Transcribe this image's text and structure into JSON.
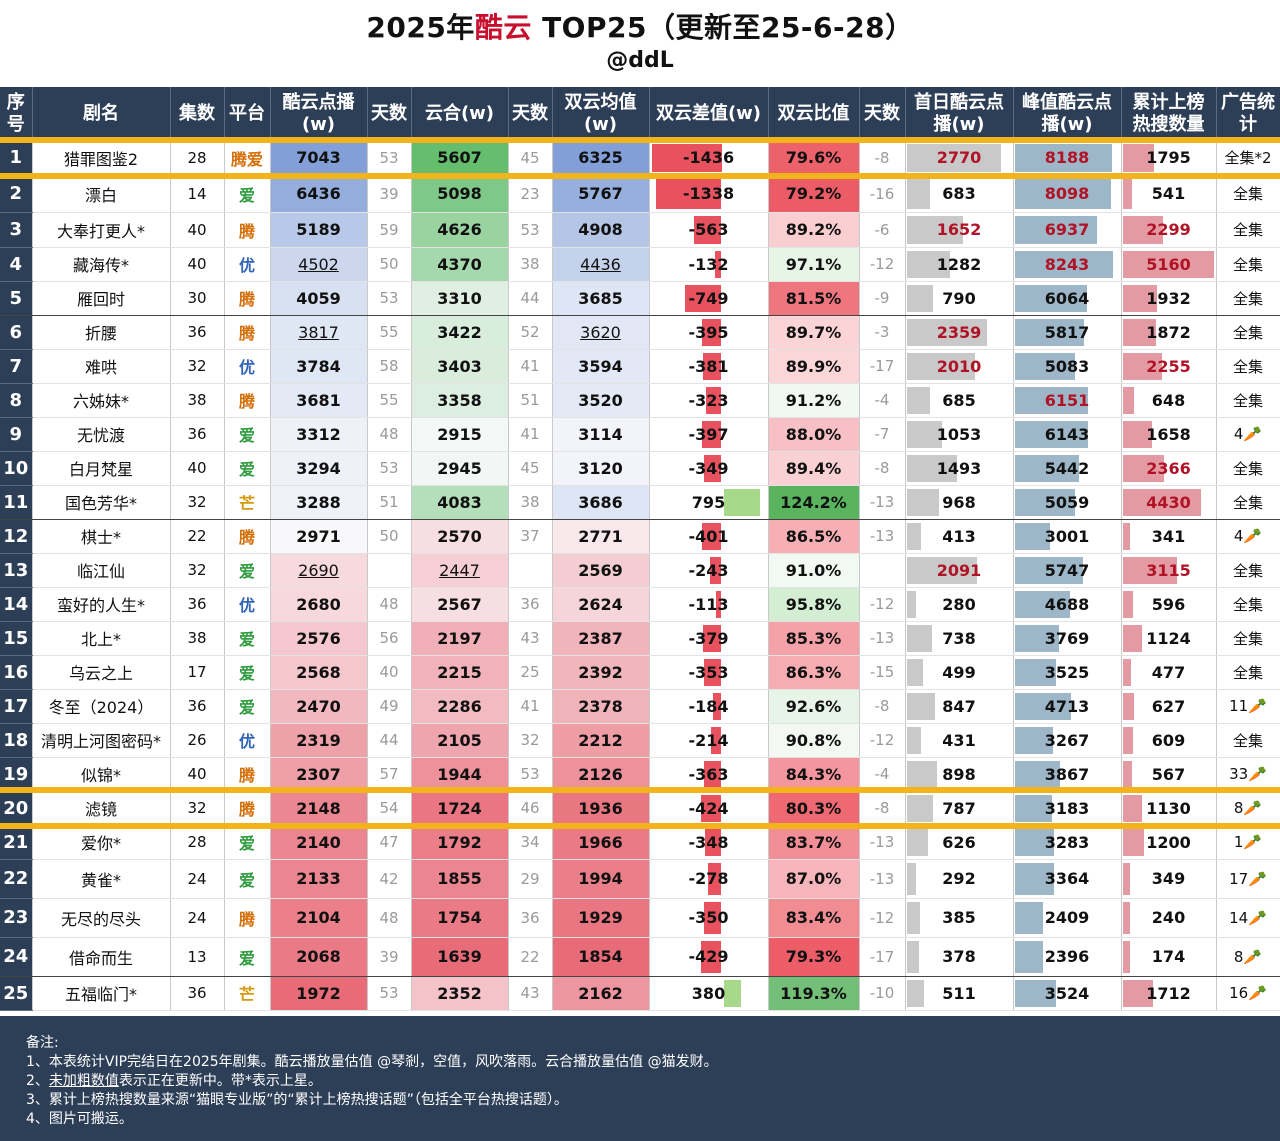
{
  "title_prefix": "2025年",
  "title_highlight": "酷云",
  "title_suffix": " TOP25（更新至25-6-28）",
  "subtitle": "@ddL",
  "headers": [
    "序号",
    "剧名",
    "集数",
    "平台",
    "酷云点播(w)",
    "天数",
    "云合(w)",
    "天数",
    "双云均值(w)",
    "双云差值(w)",
    "双云比值",
    "天数",
    "首日酷云点播(w)",
    "峰值酷云点播(w)",
    "累计上榜热搜数量",
    "广告统计"
  ],
  "colors": {
    "header": "#2d3f57",
    "highlight": "#f2b418",
    "title_red": "#c8102e",
    "carrot": "#e06c10"
  },
  "chart_data": {
    "type": "table",
    "columns": [
      "rank",
      "name",
      "episodes",
      "platform",
      "kuyun",
      "kuyun_days",
      "yunhe",
      "yunhe_days",
      "avg",
      "diff",
      "ratio",
      "ratio_days",
      "first_day",
      "peak",
      "hot_search",
      "ads"
    ],
    "rows": [
      {
        "rank": "1",
        "name": "猎罪图鉴2",
        "episodes": "28",
        "platform": "腾爱",
        "kuyun": "7043",
        "kuyun_days": "53",
        "yunhe": "5607",
        "yunhe_days": "45",
        "avg": "6325",
        "diff": "-1436",
        "ratio": "79.6%",
        "ratio_days": "-8",
        "first_day": "2770",
        "peak": "8188",
        "hot_search": "1795",
        "ads": "全集*2"
      },
      {
        "rank": "2",
        "name": "漂白",
        "episodes": "14",
        "platform": "爱",
        "kuyun": "6436",
        "kuyun_days": "39",
        "yunhe": "5098",
        "yunhe_days": "23",
        "avg": "5767",
        "diff": "-1338",
        "ratio": "79.2%",
        "ratio_days": "-16",
        "first_day": "683",
        "peak": "8098",
        "hot_search": "541",
        "ads": "全集"
      },
      {
        "rank": "3",
        "name": "大奉打更人*",
        "episodes": "40",
        "platform": "腾",
        "kuyun": "5189",
        "kuyun_days": "59",
        "yunhe": "4626",
        "yunhe_days": "53",
        "avg": "4908",
        "diff": "-563",
        "ratio": "89.2%",
        "ratio_days": "-6",
        "first_day": "1652",
        "peak": "6937",
        "hot_search": "2299",
        "ads": "全集"
      },
      {
        "rank": "4",
        "name": "藏海传*",
        "episodes": "40",
        "platform": "优",
        "kuyun": "4502",
        "kuyun_days": "50",
        "yunhe": "4370",
        "yunhe_days": "38",
        "avg": "4436",
        "diff": "-132",
        "ratio": "97.1%",
        "ratio_days": "-12",
        "first_day": "1282",
        "peak": "8243",
        "hot_search": "5160",
        "ads": "全集"
      },
      {
        "rank": "5",
        "name": "雁回时",
        "episodes": "30",
        "platform": "腾",
        "kuyun": "4059",
        "kuyun_days": "53",
        "yunhe": "3310",
        "yunhe_days": "44",
        "avg": "3685",
        "diff": "-749",
        "ratio": "81.5%",
        "ratio_days": "-9",
        "first_day": "790",
        "peak": "6064",
        "hot_search": "1932",
        "ads": "全集"
      },
      {
        "rank": "6",
        "name": "折腰",
        "episodes": "36",
        "platform": "腾",
        "kuyun": "3817",
        "kuyun_days": "55",
        "yunhe": "3422",
        "yunhe_days": "52",
        "avg": "3620",
        "diff": "-395",
        "ratio": "89.7%",
        "ratio_days": "-3",
        "first_day": "2359",
        "peak": "5817",
        "hot_search": "1872",
        "ads": "全集"
      },
      {
        "rank": "7",
        "name": "难哄",
        "episodes": "32",
        "platform": "优",
        "kuyun": "3784",
        "kuyun_days": "58",
        "yunhe": "3403",
        "yunhe_days": "41",
        "avg": "3594",
        "diff": "-381",
        "ratio": "89.9%",
        "ratio_days": "-17",
        "first_day": "2010",
        "peak": "5083",
        "hot_search": "2255",
        "ads": "全集"
      },
      {
        "rank": "8",
        "name": "六姊妹*",
        "episodes": "38",
        "platform": "腾",
        "kuyun": "3681",
        "kuyun_days": "55",
        "yunhe": "3358",
        "yunhe_days": "51",
        "avg": "3520",
        "diff": "-323",
        "ratio": "91.2%",
        "ratio_days": "-4",
        "first_day": "685",
        "peak": "6151",
        "hot_search": "648",
        "ads": "全集"
      },
      {
        "rank": "9",
        "name": "无忧渡",
        "episodes": "36",
        "platform": "爱",
        "kuyun": "3312",
        "kuyun_days": "48",
        "yunhe": "2915",
        "yunhe_days": "41",
        "avg": "3114",
        "diff": "-397",
        "ratio": "88.0%",
        "ratio_days": "-7",
        "first_day": "1053",
        "peak": "6143",
        "hot_search": "1658",
        "ads": "4"
      },
      {
        "rank": "10",
        "name": "白月梵星",
        "episodes": "40",
        "platform": "爱",
        "kuyun": "3294",
        "kuyun_days": "53",
        "yunhe": "2945",
        "yunhe_days": "45",
        "avg": "3120",
        "diff": "-349",
        "ratio": "89.4%",
        "ratio_days": "-8",
        "first_day": "1493",
        "peak": "5442",
        "hot_search": "2366",
        "ads": "全集"
      },
      {
        "rank": "11",
        "name": "国色芳华*",
        "episodes": "32",
        "platform": "芒",
        "kuyun": "3288",
        "kuyun_days": "51",
        "yunhe": "4083",
        "yunhe_days": "38",
        "avg": "3686",
        "diff": "795",
        "ratio": "124.2%",
        "ratio_days": "-13",
        "first_day": "968",
        "peak": "5059",
        "hot_search": "4430",
        "ads": "全集"
      },
      {
        "rank": "12",
        "name": "棋士*",
        "episodes": "22",
        "platform": "腾",
        "kuyun": "2971",
        "kuyun_days": "50",
        "yunhe": "2570",
        "yunhe_days": "37",
        "avg": "2771",
        "diff": "-401",
        "ratio": "86.5%",
        "ratio_days": "-13",
        "first_day": "413",
        "peak": "3001",
        "hot_search": "341",
        "ads": "4"
      },
      {
        "rank": "13",
        "name": "临江仙",
        "episodes": "32",
        "platform": "爱",
        "kuyun": "2690",
        "kuyun_days": "",
        "yunhe": "2447",
        "yunhe_days": "",
        "avg": "2569",
        "diff": "-243",
        "ratio": "91.0%",
        "ratio_days": "",
        "first_day": "2091",
        "peak": "5747",
        "hot_search": "3115",
        "ads": "全集"
      },
      {
        "rank": "14",
        "name": "蛮好的人生*",
        "episodes": "36",
        "platform": "优",
        "kuyun": "2680",
        "kuyun_days": "48",
        "yunhe": "2567",
        "yunhe_days": "36",
        "avg": "2624",
        "diff": "-113",
        "ratio": "95.8%",
        "ratio_days": "-12",
        "first_day": "280",
        "peak": "4688",
        "hot_search": "596",
        "ads": "全集"
      },
      {
        "rank": "15",
        "name": "北上*",
        "episodes": "38",
        "platform": "爱",
        "kuyun": "2576",
        "kuyun_days": "56",
        "yunhe": "2197",
        "yunhe_days": "43",
        "avg": "2387",
        "diff": "-379",
        "ratio": "85.3%",
        "ratio_days": "-13",
        "first_day": "738",
        "peak": "3769",
        "hot_search": "1124",
        "ads": "全集"
      },
      {
        "rank": "16",
        "name": "乌云之上",
        "episodes": "17",
        "platform": "爱",
        "kuyun": "2568",
        "kuyun_days": "40",
        "yunhe": "2215",
        "yunhe_days": "25",
        "avg": "2392",
        "diff": "-353",
        "ratio": "86.3%",
        "ratio_days": "-15",
        "first_day": "499",
        "peak": "3525",
        "hot_search": "477",
        "ads": "全集"
      },
      {
        "rank": "17",
        "name": "冬至（2024）",
        "episodes": "36",
        "platform": "爱",
        "kuyun": "2470",
        "kuyun_days": "49",
        "yunhe": "2286",
        "yunhe_days": "41",
        "avg": "2378",
        "diff": "-184",
        "ratio": "92.6%",
        "ratio_days": "-8",
        "first_day": "847",
        "peak": "4713",
        "hot_search": "627",
        "ads": "11"
      },
      {
        "rank": "18",
        "name": "清明上河图密码*",
        "episodes": "26",
        "platform": "优",
        "kuyun": "2319",
        "kuyun_days": "44",
        "yunhe": "2105",
        "yunhe_days": "32",
        "avg": "2212",
        "diff": "-214",
        "ratio": "90.8%",
        "ratio_days": "-12",
        "first_day": "431",
        "peak": "3267",
        "hot_search": "609",
        "ads": "全集"
      },
      {
        "rank": "19",
        "name": "似锦*",
        "episodes": "40",
        "platform": "腾",
        "kuyun": "2307",
        "kuyun_days": "57",
        "yunhe": "1944",
        "yunhe_days": "53",
        "avg": "2126",
        "diff": "-363",
        "ratio": "84.3%",
        "ratio_days": "-4",
        "first_day": "898",
        "peak": "3867",
        "hot_search": "567",
        "ads": "33"
      },
      {
        "rank": "20",
        "name": "滤镜",
        "episodes": "32",
        "platform": "腾",
        "kuyun": "2148",
        "kuyun_days": "54",
        "yunhe": "1724",
        "yunhe_days": "46",
        "avg": "1936",
        "diff": "-424",
        "ratio": "80.3%",
        "ratio_days": "-8",
        "first_day": "787",
        "peak": "3183",
        "hot_search": "1130",
        "ads": "8"
      },
      {
        "rank": "21",
        "name": "爱你*",
        "episodes": "28",
        "platform": "爱",
        "kuyun": "2140",
        "kuyun_days": "47",
        "yunhe": "1792",
        "yunhe_days": "34",
        "avg": "1966",
        "diff": "-348",
        "ratio": "83.7%",
        "ratio_days": "-13",
        "first_day": "626",
        "peak": "3283",
        "hot_search": "1200",
        "ads": "1"
      },
      {
        "rank": "22",
        "name": "黄雀*",
        "episodes": "24",
        "platform": "爱",
        "kuyun": "2133",
        "kuyun_days": "42",
        "yunhe": "1855",
        "yunhe_days": "29",
        "avg": "1994",
        "diff": "-278",
        "ratio": "87.0%",
        "ratio_days": "-13",
        "first_day": "292",
        "peak": "3364",
        "hot_search": "349",
        "ads": "17"
      },
      {
        "rank": "23",
        "name": "无尽的尽头",
        "episodes": "24",
        "platform": "腾",
        "kuyun": "2104",
        "kuyun_days": "48",
        "yunhe": "1754",
        "yunhe_days": "36",
        "avg": "1929",
        "diff": "-350",
        "ratio": "83.4%",
        "ratio_days": "-12",
        "first_day": "385",
        "peak": "2409",
        "hot_search": "240",
        "ads": "14"
      },
      {
        "rank": "24",
        "name": "借命而生",
        "episodes": "13",
        "platform": "爱",
        "kuyun": "2068",
        "kuyun_days": "39",
        "yunhe": "1639",
        "yunhe_days": "22",
        "avg": "1854",
        "diff": "-429",
        "ratio": "79.3%",
        "ratio_days": "-17",
        "first_day": "378",
        "peak": "2396",
        "hot_search": "174",
        "ads": "8"
      },
      {
        "rank": "25",
        "name": "五福临门*",
        "episodes": "36",
        "platform": "芒",
        "kuyun": "1972",
        "kuyun_days": "53",
        "yunhe": "2352",
        "yunhe_days": "43",
        "avg": "2162",
        "diff": "380",
        "ratio": "119.3%",
        "ratio_days": "-10",
        "first_day": "511",
        "peak": "3524",
        "hot_search": "1712",
        "ads": "16"
      }
    ]
  },
  "notes": {
    "title": "备注:",
    "line1": "1、本表统计VIP完结日在2025年剧集。酷云播放量估值 @琴剎，空值，风吹落雨。云合播放量估值 @猫发财。",
    "line2_ul": "未加粗数值",
    "line2_pre": "2、",
    "line2_post": "表示正在更新中。带*表示上星。",
    "line3": "3、累计上榜热搜数量来源“猫眼专业版”的“累计上榜热搜话题”（包括全平台热搜话题）。",
    "line4": "4、图片可搬运。"
  }
}
